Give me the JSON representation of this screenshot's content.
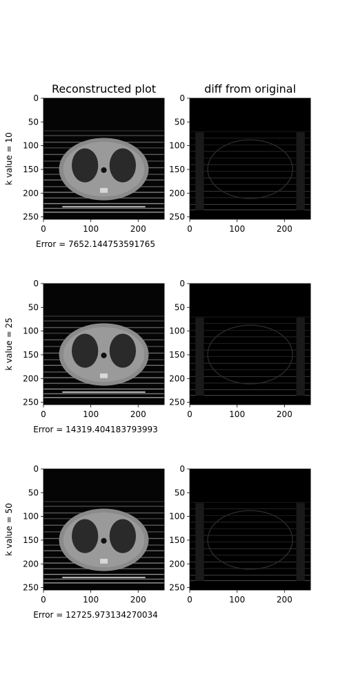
{
  "figure": {
    "col_titles": [
      "Reconstructed plot",
      "diff from original"
    ],
    "colors": {
      "background": "#ffffff",
      "axes": "#000000",
      "image_black": "#000000"
    }
  },
  "chart_data": [
    {
      "type": "heatmap",
      "colormap": "gray",
      "row_label": "k value = 10",
      "k": 10,
      "error_text": "Error = 7652.144753591765",
      "error": 7652.144753591765,
      "panels": [
        {
          "title": "Reconstructed plot",
          "content": "reconstructed CT slice (chest), low-rank approximation",
          "xlim": [
            0,
            255
          ],
          "ylim": [
            255,
            0
          ],
          "xticks": [
            0,
            100,
            200
          ],
          "yticks": [
            0,
            50,
            100,
            150,
            200,
            250
          ]
        },
        {
          "title": "diff from original",
          "content": "absolute difference from original image",
          "xlim": [
            0,
            255
          ],
          "ylim": [
            255,
            0
          ],
          "xticks": [
            0,
            100,
            200
          ],
          "yticks": [
            0,
            50,
            100,
            150,
            200,
            250
          ]
        }
      ]
    },
    {
      "type": "heatmap",
      "colormap": "gray",
      "row_label": "k value = 25",
      "k": 25,
      "error_text": "Error = 14319.404183793993",
      "error": 14319.404183793993,
      "panels": [
        {
          "title": "",
          "content": "reconstructed CT slice (chest), low-rank approximation",
          "xlim": [
            0,
            255
          ],
          "ylim": [
            255,
            0
          ],
          "xticks": [
            0,
            100,
            200
          ],
          "yticks": [
            0,
            50,
            100,
            150,
            200,
            250
          ]
        },
        {
          "title": "",
          "content": "absolute difference from original image",
          "xlim": [
            0,
            255
          ],
          "ylim": [
            255,
            0
          ],
          "xticks": [
            0,
            100,
            200
          ],
          "yticks": [
            0,
            50,
            100,
            150,
            200,
            250
          ]
        }
      ]
    },
    {
      "type": "heatmap",
      "colormap": "gray",
      "row_label": "k value = 50",
      "k": 50,
      "error_text": "Error = 12725.973134270034",
      "error": 12725.973134270034,
      "panels": [
        {
          "title": "",
          "content": "reconstructed CT slice (chest), low-rank approximation",
          "xlim": [
            0,
            255
          ],
          "ylim": [
            255,
            0
          ],
          "xticks": [
            0,
            100,
            200
          ],
          "yticks": [
            0,
            50,
            100,
            150,
            200,
            250
          ]
        },
        {
          "title": "",
          "content": "absolute difference from original image",
          "xlim": [
            0,
            255
          ],
          "ylim": [
            255,
            0
          ],
          "xticks": [
            0,
            100,
            200
          ],
          "yticks": [
            0,
            50,
            100,
            150,
            200,
            250
          ]
        }
      ]
    }
  ]
}
